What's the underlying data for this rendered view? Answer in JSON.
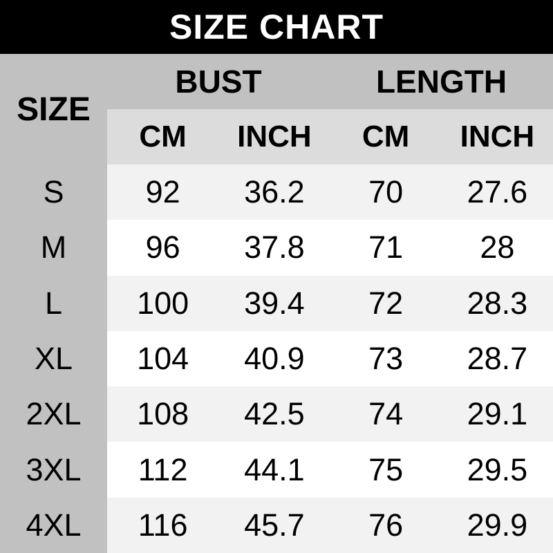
{
  "title": "SIZE CHART",
  "table": {
    "corner_label": "SIZE",
    "groups": [
      {
        "label": "BUST"
      },
      {
        "label": "LENGTH"
      }
    ],
    "unit_headers": [
      "CM",
      "INCH",
      "CM",
      "INCH"
    ],
    "rows": [
      {
        "cells": [
          "S",
          "92",
          "36.2",
          "70",
          "27.6"
        ]
      },
      {
        "cells": [
          "M",
          "96",
          "37.8",
          "71",
          "28"
        ]
      },
      {
        "cells": [
          "L",
          "100",
          "39.4",
          "72",
          "28.3"
        ]
      },
      {
        "cells": [
          "XL",
          "104",
          "40.9",
          "73",
          "28.7"
        ]
      },
      {
        "cells": [
          "2XL",
          "108",
          "42.5",
          "74",
          "29.1"
        ]
      },
      {
        "cells": [
          "3XL",
          "112",
          "44.1",
          "75",
          "29.5"
        ]
      },
      {
        "cells": [
          "4XL",
          "116",
          "45.7",
          "76",
          "29.9"
        ]
      }
    ]
  },
  "colors": {
    "title_bg": "#000000",
    "title_text": "#ffffff",
    "panel_bg": "#c1c1c1",
    "units_bg": "#dcdcdc",
    "row_stripe_bg": "#f2f2f2",
    "row_plain_bg": "#ffffff",
    "text": "#000000"
  },
  "chart_data": {
    "type": "table",
    "title": "SIZE CHART",
    "column_groups": [
      "BUST",
      "LENGTH"
    ],
    "columns": [
      "SIZE",
      "BUST CM",
      "BUST INCH",
      "LENGTH CM",
      "LENGTH INCH"
    ],
    "rows": [
      [
        "S",
        92,
        36.2,
        70,
        27.6
      ],
      [
        "M",
        96,
        37.8,
        71,
        28
      ],
      [
        "L",
        100,
        39.4,
        72,
        28.3
      ],
      [
        "XL",
        104,
        40.9,
        73,
        28.7
      ],
      [
        "2XL",
        108,
        42.5,
        74,
        29.1
      ],
      [
        "3XL",
        112,
        44.1,
        75,
        29.5
      ],
      [
        "4XL",
        116,
        45.7,
        76,
        29.9
      ]
    ]
  }
}
